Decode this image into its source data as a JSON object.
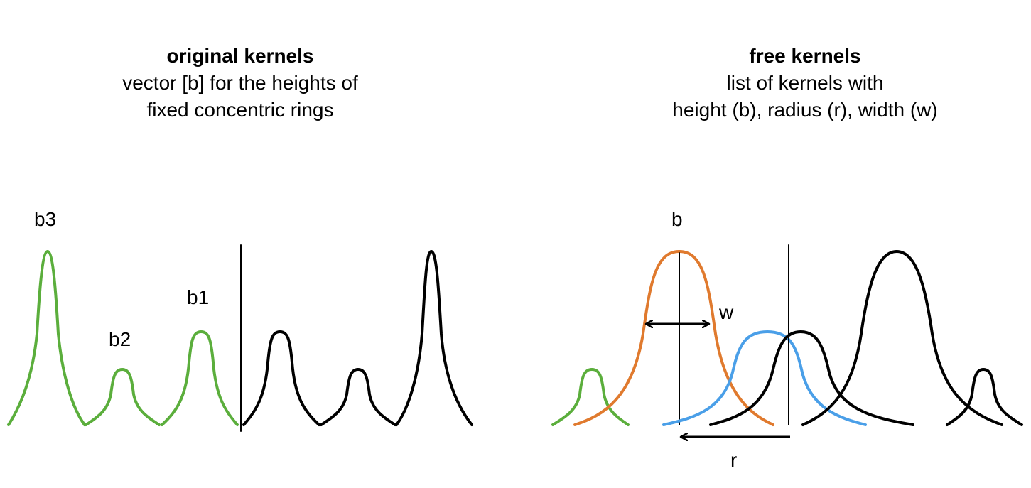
{
  "left_panel": {
    "title": "original kernels",
    "line1": "vector [b] for the heights of",
    "line2": "fixed concentric rings",
    "labels": {
      "b3": "b3",
      "b2": "b2",
      "b1": "b1"
    }
  },
  "right_panel": {
    "title": "free kernels",
    "line1": "list of kernels with",
    "line2": "height (b), radius (r), width (w)",
    "labels": {
      "b": "b",
      "w": "w",
      "r": "r"
    }
  },
  "colors": {
    "green": "#5BAE3C",
    "orange": "#E07A2E",
    "blue": "#4A9FE8",
    "black": "#000000"
  }
}
